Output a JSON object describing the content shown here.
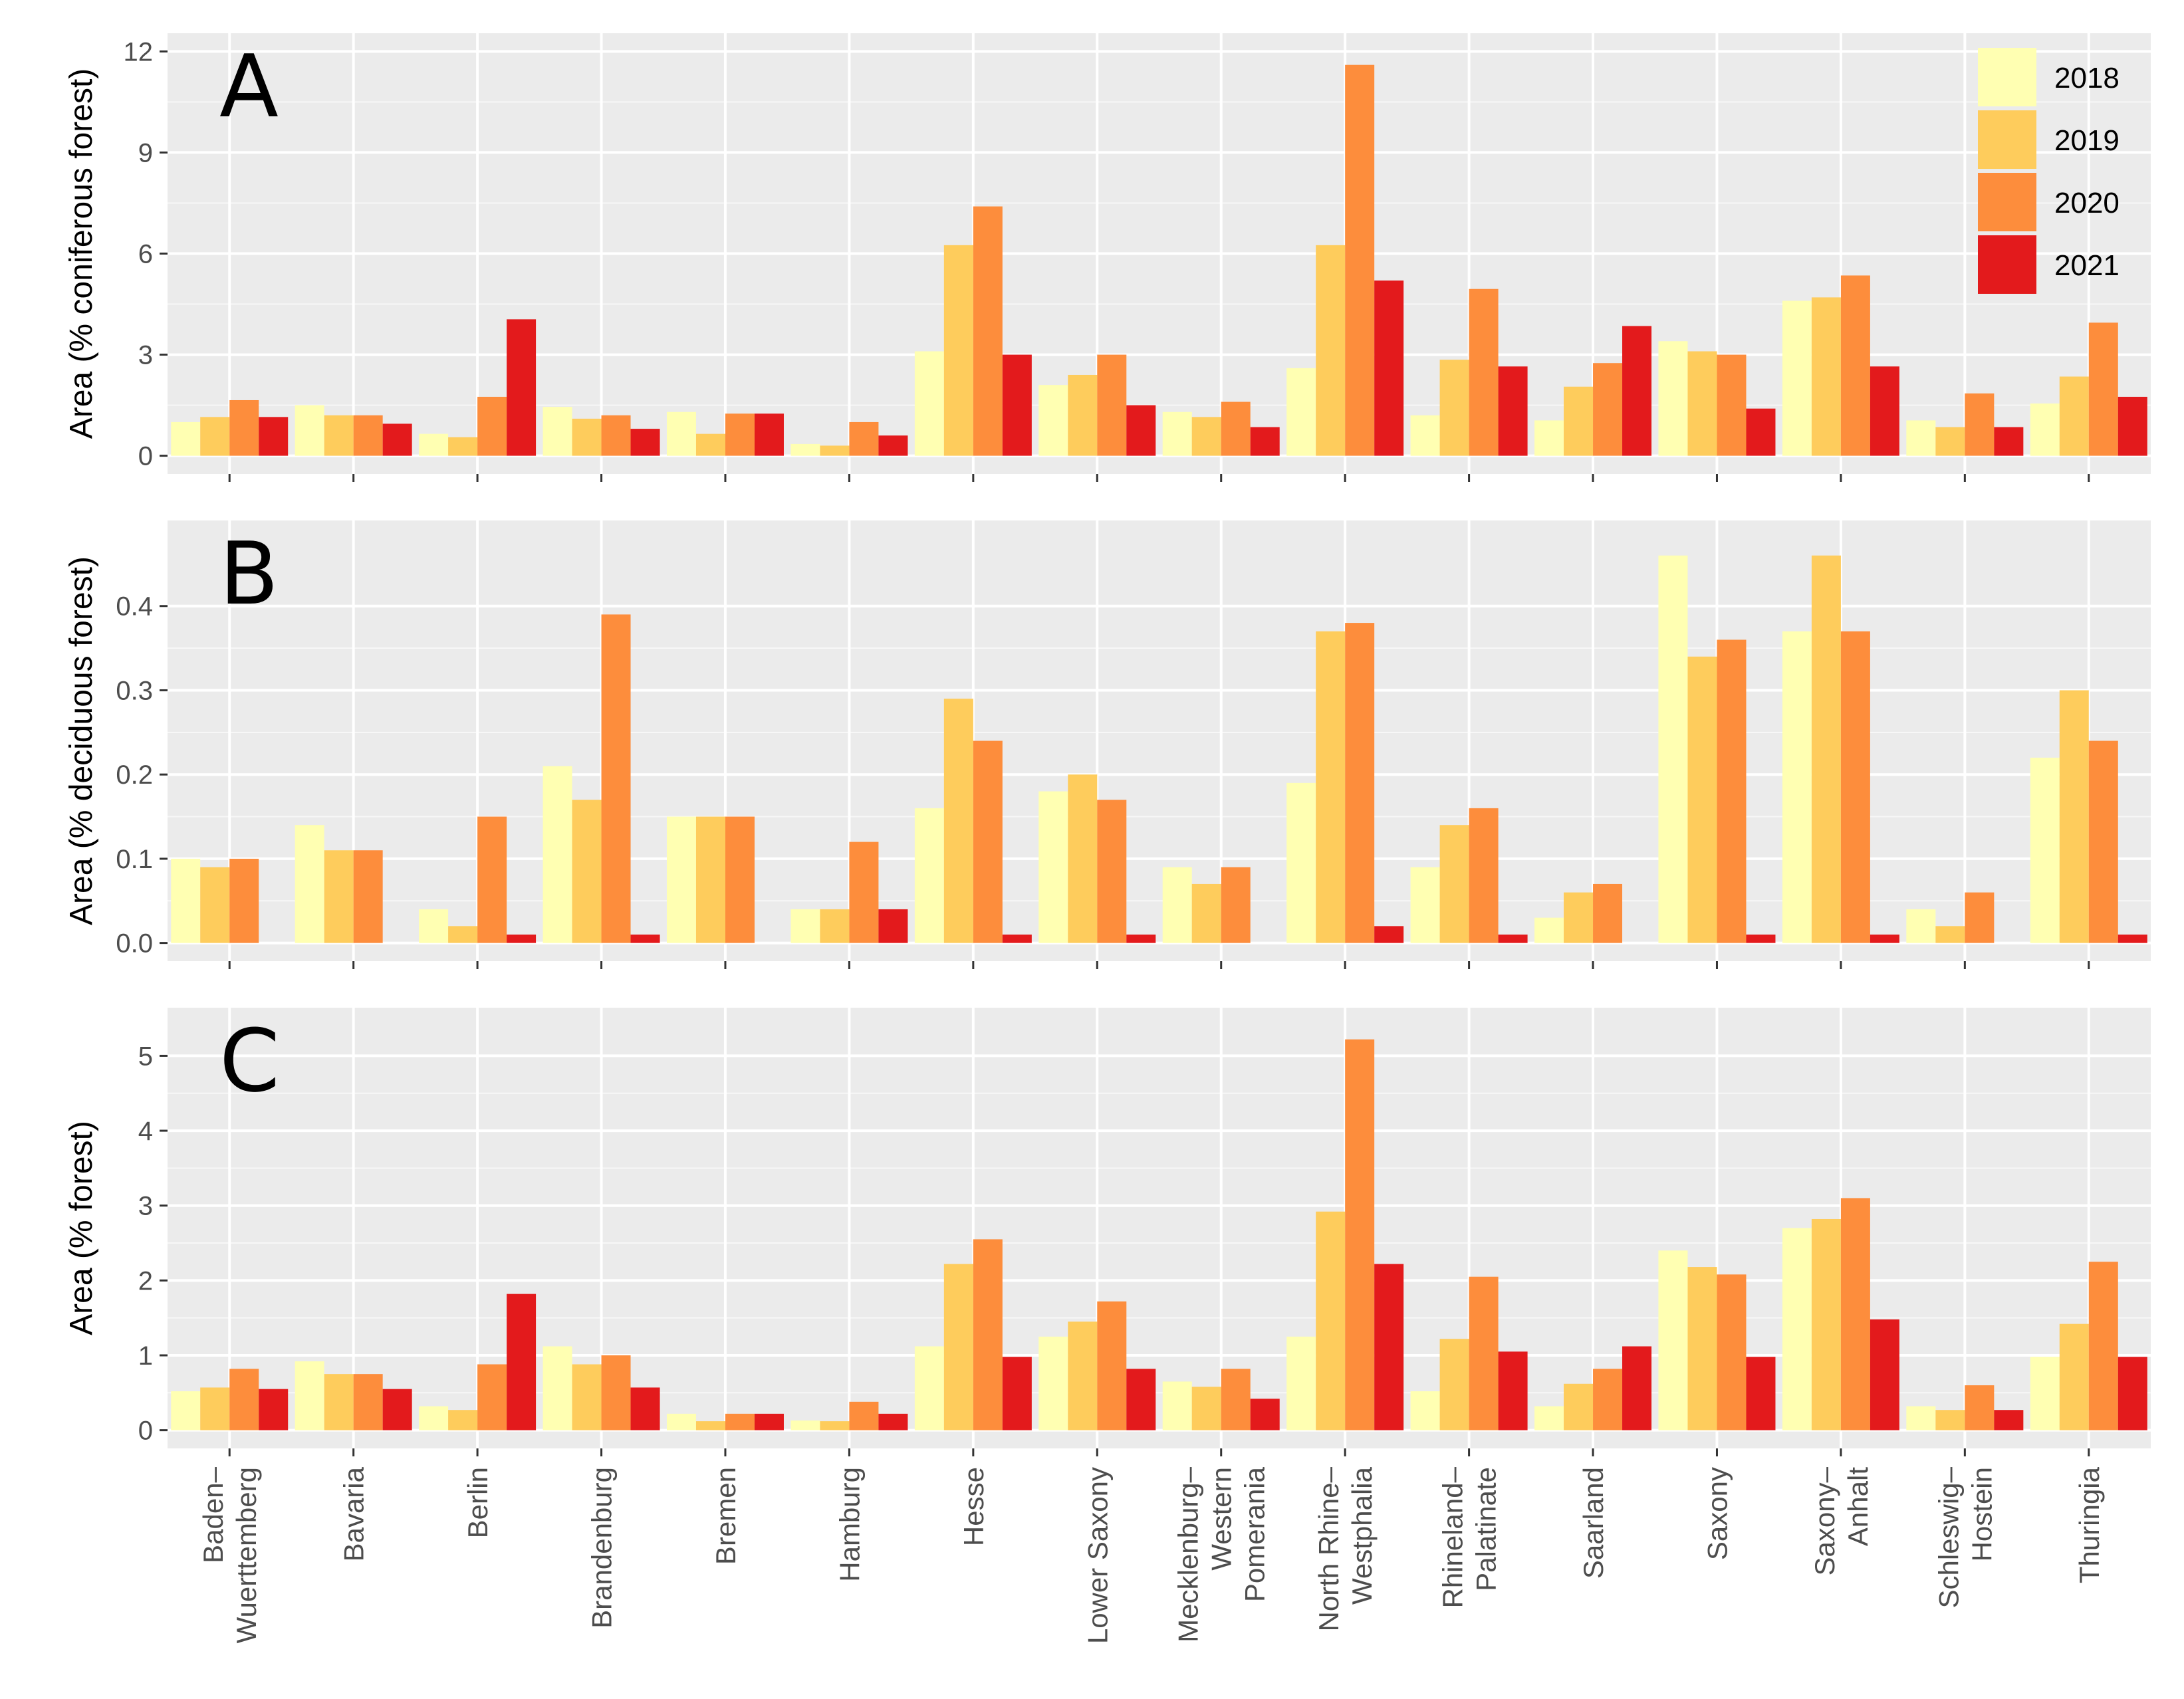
{
  "legend": {
    "entries": [
      {
        "label": "2018",
        "color": "#FFFFB2"
      },
      {
        "label": "2019",
        "color": "#FECC5C"
      },
      {
        "label": "2020",
        "color": "#FD8D3C"
      },
      {
        "label": "2021",
        "color": "#E31A1C"
      }
    ]
  },
  "chart_data": [
    {
      "type": "bar",
      "panel_label": "A",
      "ylabel": "Area (% coniferous forest)",
      "ylim": [
        0,
        12
      ],
      "yticks": [
        "0",
        "3",
        "6",
        "9",
        "12"
      ],
      "categories": [
        "Baden–\nWuerttemberg",
        "Bavaria",
        "Berlin",
        "Brandenburg",
        "Bremen",
        "Hamburg",
        "Hesse",
        "Lower Saxony",
        "Mecklenburg–\nWestern\nPomerania",
        "North Rhine–\nWestphalia",
        "Rhineland–\nPalatinate",
        "Saarland",
        "Saxony",
        "Saxony–\nAnhalt",
        "Schleswig–\nHostein",
        "Thuringia"
      ],
      "series": [
        {
          "name": "2018",
          "values": [
            1.0,
            1.5,
            0.65,
            1.45,
            1.3,
            0.35,
            3.1,
            2.1,
            1.3,
            2.6,
            1.2,
            1.05,
            3.4,
            4.6,
            1.05,
            1.55
          ]
        },
        {
          "name": "2019",
          "values": [
            1.15,
            1.2,
            0.55,
            1.1,
            0.65,
            0.3,
            6.25,
            2.4,
            1.15,
            6.25,
            2.85,
            2.05,
            3.1,
            4.7,
            0.85,
            2.35
          ]
        },
        {
          "name": "2020",
          "values": [
            1.65,
            1.2,
            1.75,
            1.2,
            1.25,
            1.0,
            7.4,
            3.0,
            1.6,
            11.6,
            4.95,
            2.75,
            3.0,
            5.35,
            1.85,
            3.95
          ]
        },
        {
          "name": "2021",
          "values": [
            1.15,
            0.95,
            4.05,
            0.8,
            1.25,
            0.6,
            3.0,
            1.5,
            0.85,
            5.2,
            2.65,
            3.85,
            1.4,
            2.65,
            0.85,
            1.75
          ]
        }
      ]
    },
    {
      "type": "bar",
      "panel_label": "B",
      "ylabel": "Area (% deciduous forest)",
      "ylim": [
        0,
        0.48
      ],
      "yticks": [
        "0.0",
        "0.1",
        "0.2",
        "0.3",
        "0.4"
      ],
      "categories": [
        "Baden–\nWuerttemberg",
        "Bavaria",
        "Berlin",
        "Brandenburg",
        "Bremen",
        "Hamburg",
        "Hesse",
        "Lower Saxony",
        "Mecklenburg–\nWestern\nPomerania",
        "North Rhine–\nWestphalia",
        "Rhineland–\nPalatinate",
        "Saarland",
        "Saxony",
        "Saxony–\nAnhalt",
        "Schleswig–\nHostein",
        "Thuringia"
      ],
      "series": [
        {
          "name": "2018",
          "values": [
            0.1,
            0.14,
            0.04,
            0.21,
            0.15,
            0.04,
            0.16,
            0.18,
            0.09,
            0.19,
            0.09,
            0.03,
            0.46,
            0.37,
            0.04,
            0.22
          ]
        },
        {
          "name": "2019",
          "values": [
            0.09,
            0.11,
            0.02,
            0.17,
            0.15,
            0.04,
            0.29,
            0.2,
            0.07,
            0.37,
            0.14,
            0.06,
            0.34,
            0.46,
            0.02,
            0.3
          ]
        },
        {
          "name": "2020",
          "values": [
            0.1,
            0.11,
            0.15,
            0.39,
            0.15,
            0.12,
            0.24,
            0.17,
            0.09,
            0.38,
            0.16,
            0.07,
            0.36,
            0.37,
            0.06,
            0.24
          ]
        },
        {
          "name": "2021",
          "values": [
            0,
            0,
            0.01,
            0.01,
            0,
            0.04,
            0.01,
            0.01,
            0,
            0.02,
            0.01,
            0,
            0.01,
            0.01,
            0,
            0.01
          ]
        }
      ]
    },
    {
      "type": "bar",
      "panel_label": "C",
      "ylabel": "Area (% forest)",
      "ylim": [
        0,
        5.4
      ],
      "yticks": [
        "0",
        "1",
        "2",
        "3",
        "4",
        "5"
      ],
      "categories": [
        "Baden–\nWuerttemberg",
        "Bavaria",
        "Berlin",
        "Brandenburg",
        "Bremen",
        "Hamburg",
        "Hesse",
        "Lower Saxony",
        "Mecklenburg–\nWestern\nPomerania",
        "North Rhine–\nWestphalia",
        "Rhineland–\nPalatinate",
        "Saarland",
        "Saxony",
        "Saxony–\nAnhalt",
        "Schleswig–\nHostein",
        "Thuringia"
      ],
      "series": [
        {
          "name": "2018",
          "values": [
            0.52,
            0.92,
            0.32,
            1.12,
            0.22,
            0.13,
            1.12,
            1.25,
            0.65,
            1.25,
            0.52,
            0.32,
            2.4,
            2.7,
            0.32,
            0.98
          ]
        },
        {
          "name": "2019",
          "values": [
            0.57,
            0.75,
            0.27,
            0.88,
            0.12,
            0.12,
            2.22,
            1.45,
            0.58,
            2.92,
            1.22,
            0.62,
            2.18,
            2.82,
            0.27,
            1.42
          ]
        },
        {
          "name": "2020",
          "values": [
            0.82,
            0.75,
            0.88,
            1.0,
            0.22,
            0.38,
            2.55,
            1.72,
            0.82,
            5.22,
            2.05,
            0.82,
            2.08,
            3.1,
            0.6,
            2.25
          ]
        },
        {
          "name": "2021",
          "values": [
            0.55,
            0.55,
            1.82,
            0.57,
            0.22,
            0.22,
            0.98,
            0.82,
            0.42,
            2.22,
            1.05,
            1.12,
            0.98,
            1.48,
            0.27,
            0.98
          ]
        }
      ]
    }
  ]
}
